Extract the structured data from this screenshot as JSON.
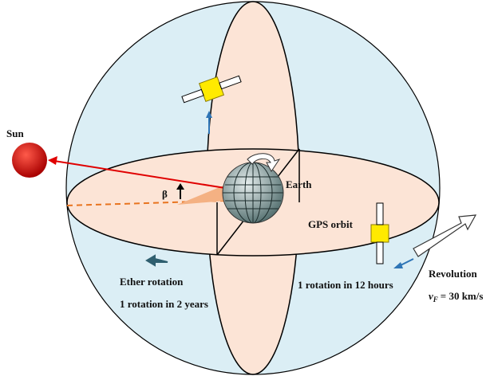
{
  "labels": {
    "sun": "Sun",
    "beta": "β",
    "earth": "Earth",
    "gps_orbit": "GPS orbit",
    "ether_rotation": "Ether rotation",
    "ether_period": "1 rotation in 2 years",
    "gps_period": "1 rotation in 12 hours",
    "revolution": "Revolution",
    "speed_symbol": "v",
    "speed_subscript": "F",
    "speed_value": "= 30 km/s"
  }
}
